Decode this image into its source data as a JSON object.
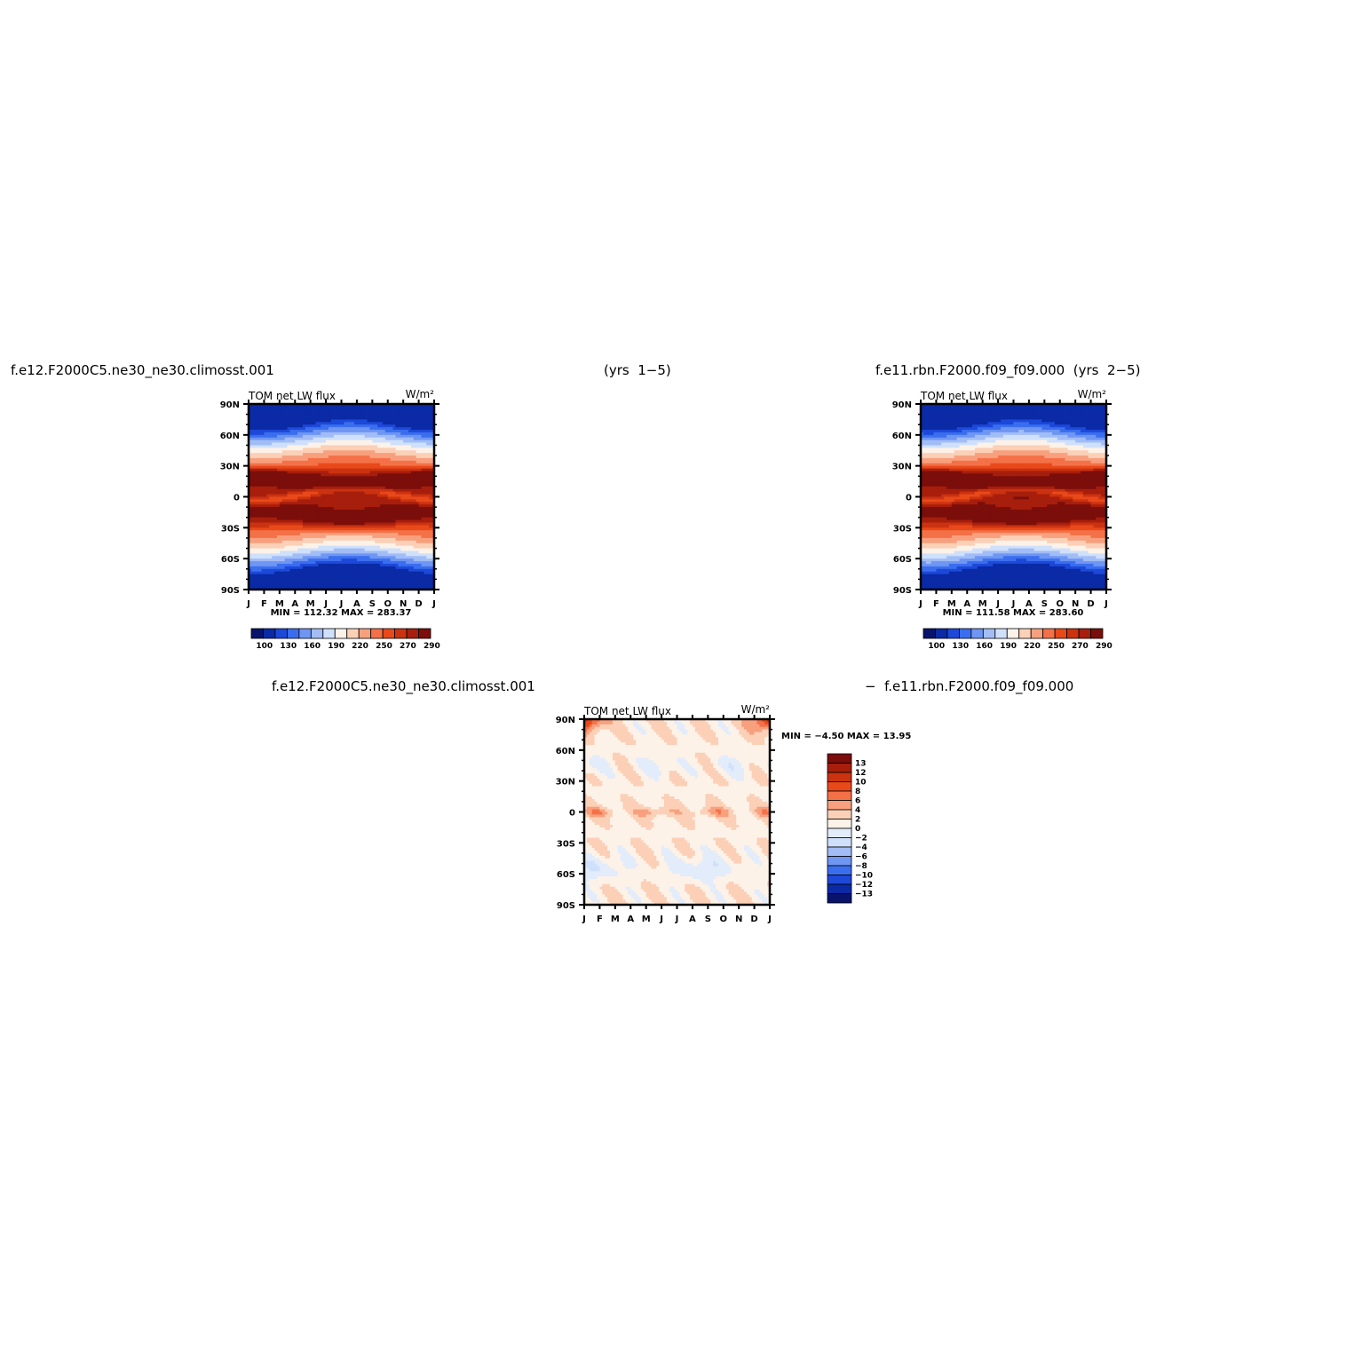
{
  "titles": {
    "left": "f.e12.F2000C5.ne30_ne30.climosst.001",
    "center": "(yrs  1−5)",
    "right": "f.e11.rbn.F2000.f09_f09.000  (yrs  2−5)",
    "diff_left": "f.e12.F2000C5.ne30_ne30.climosst.001",
    "diff_right": "−  f.e11.rbn.F2000.f09_f09.000"
  },
  "months": [
    "J",
    "F",
    "M",
    "A",
    "M",
    "J",
    "J",
    "A",
    "S",
    "O",
    "N",
    "D",
    "J"
  ],
  "lat_labels": [
    "90N",
    "60N",
    "30N",
    "0",
    "30S",
    "60S",
    "90S"
  ],
  "chart_data": [
    {
      "type": "heatmap",
      "name": "panel1",
      "label_left": "TOM  net  LW  flux",
      "label_right": "W/m²",
      "minmax": "MIN  =  112.32  MAX  =  283.37",
      "colorbar_labels": [
        "100",
        "130",
        "160",
        "190",
        "220",
        "250",
        "270",
        "290"
      ],
      "zmin": 112.32,
      "zmax": 283.37
    },
    {
      "type": "heatmap",
      "name": "panel2",
      "label_left": "TOM  net  LW  flux",
      "label_right": "W/m²",
      "minmax": "MIN  =  111.58  MAX  =  283.60",
      "colorbar_labels": [
        "100",
        "130",
        "160",
        "190",
        "220",
        "250",
        "270",
        "290"
      ],
      "zmin": 111.58,
      "zmax": 283.6
    },
    {
      "type": "heatmap",
      "name": "difference",
      "label_left": "TOM  net  LW  flux",
      "label_right": "W/m²",
      "minmax": "MIN  =    −4.50  MAX  =    13.95",
      "colorbar_labels": [
        "13",
        "12",
        "10",
        "8",
        "6",
        "4",
        "2",
        "0",
        "−2",
        "−4",
        "−6",
        "−8",
        "−10",
        "−12",
        "−13"
      ],
      "zmin": -4.5,
      "zmax": 13.95
    }
  ],
  "colors": {
    "abs_scale": [
      "#08136b",
      "#0a2aa6",
      "#1d48d8",
      "#3b6eee",
      "#6e96f2",
      "#a2bdf6",
      "#cfe0fb",
      "#fdf2e8",
      "#fbd0b7",
      "#f8a07e",
      "#f47148",
      "#e9491a",
      "#cb3210",
      "#a71e0d",
      "#7b0e0a"
    ],
    "diff_scale": [
      "#7b0e0a",
      "#a71e0d",
      "#cb3210",
      "#e9491a",
      "#f47148",
      "#f8a07e",
      "#fbd0b7",
      "#fdf2e8",
      "#e2ecfa",
      "#cfe0fb",
      "#a2bdf6",
      "#6e96f2",
      "#3b6eee",
      "#1d48d8",
      "#0a2aa6",
      "#08136b"
    ]
  }
}
